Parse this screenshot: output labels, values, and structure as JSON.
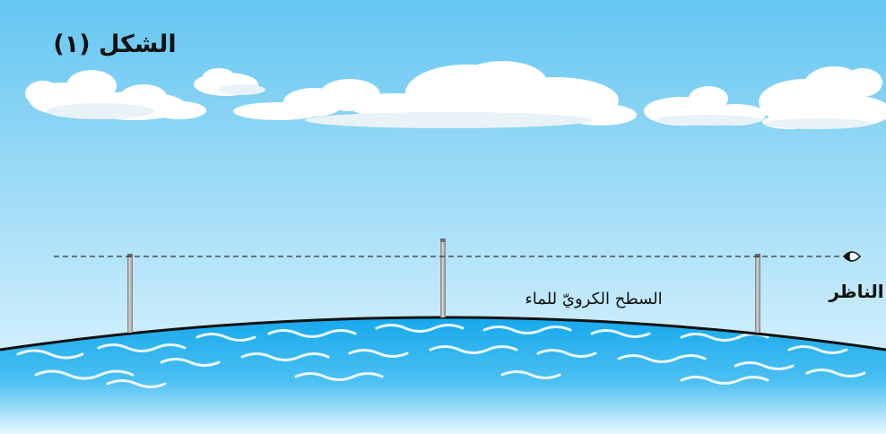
{
  "figure": {
    "title": "الشكل (١)",
    "observer_label": "الناظر",
    "surface_label": "السطح الكرويّ للماء"
  },
  "icons": {
    "observer": "eye-icon"
  },
  "colors": {
    "sky_top": "#64C6F1",
    "sky_bottom": "#EAF8FF",
    "cloud": "#FFFFFF",
    "cloud_shade": "#E9F2F7",
    "water_top": "#16A9EC",
    "water_bottom": "#E8F7FF",
    "wave": "#FFFFFF",
    "pole": "#9A9A9A",
    "outline": "#111111"
  }
}
